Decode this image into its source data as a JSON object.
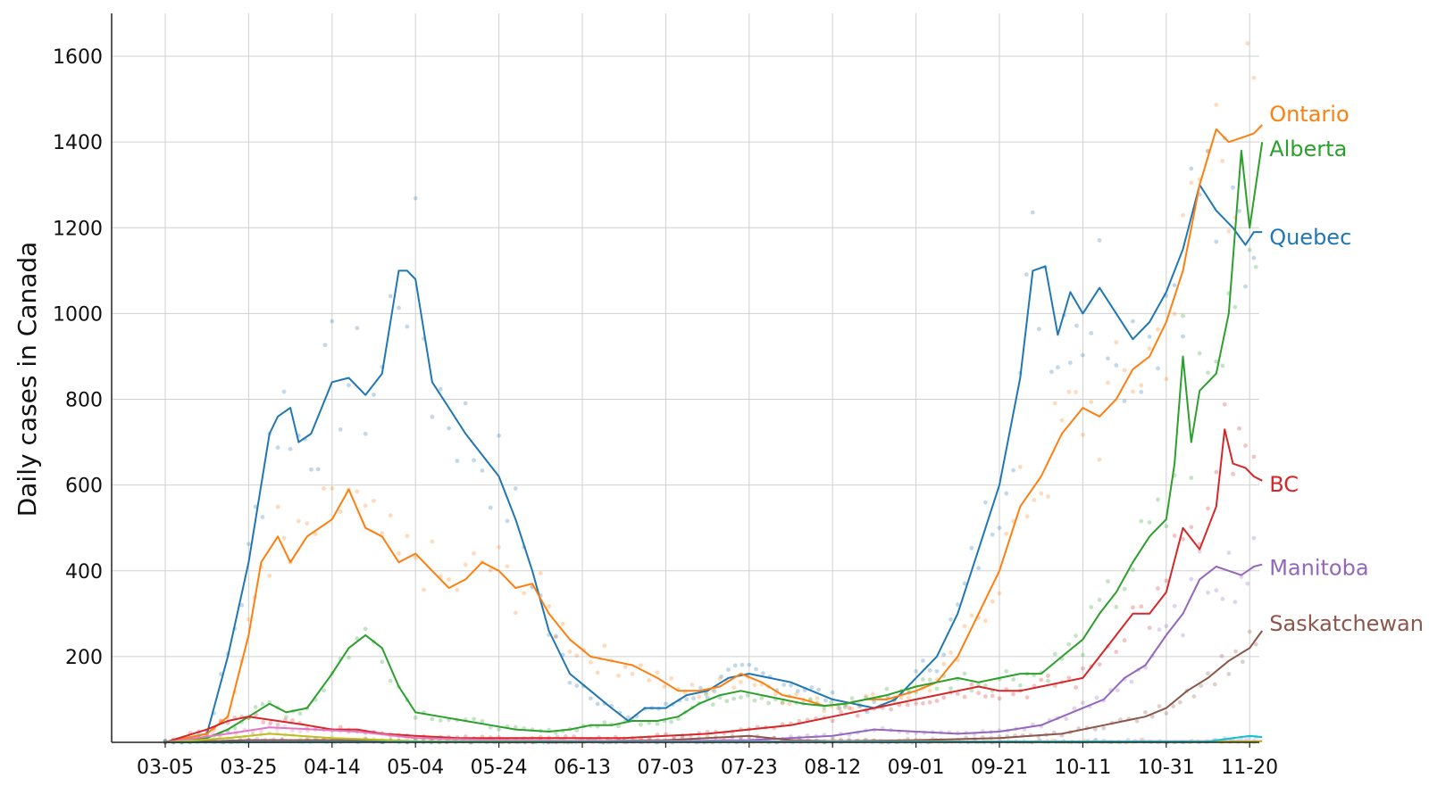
{
  "chart_data": {
    "type": "line",
    "title": "",
    "xlabel": "",
    "ylabel": "Daily cases in Canada",
    "ylim": [
      0,
      1700
    ],
    "yticks": [
      200,
      400,
      600,
      800,
      1000,
      1200,
      1400,
      1600
    ],
    "x_unit": "date (MM-DD, 2020)",
    "xlim": [
      "03-05",
      "11-23"
    ],
    "xticks": [
      "03-05",
      "03-25",
      "04-14",
      "05-04",
      "05-24",
      "06-13",
      "07-03",
      "07-23",
      "08-12",
      "09-01",
      "09-21",
      "10-11",
      "10-31",
      "11-20"
    ],
    "grid": true,
    "legend": "inline labels at right end of lines",
    "notes_visual": "Solid lines are smoothed daily values; faint dots are raw daily counts.",
    "series": [
      {
        "name": "Quebec",
        "color": "#1f77b4",
        "points": [
          [
            "03-05",
            0
          ],
          [
            "03-15",
            20
          ],
          [
            "03-20",
            200
          ],
          [
            "03-25",
            420
          ],
          [
            "03-30",
            720
          ],
          [
            "04-01",
            760
          ],
          [
            "04-04",
            780
          ],
          [
            "04-06",
            700
          ],
          [
            "04-09",
            720
          ],
          [
            "04-14",
            840
          ],
          [
            "04-18",
            850
          ],
          [
            "04-22",
            810
          ],
          [
            "04-26",
            860
          ],
          [
            "04-30",
            1100
          ],
          [
            "05-02",
            1100
          ],
          [
            "05-04",
            1080
          ],
          [
            "05-08",
            840
          ],
          [
            "05-12",
            780
          ],
          [
            "05-16",
            720
          ],
          [
            "05-20",
            670
          ],
          [
            "05-24",
            620
          ],
          [
            "05-28",
            520
          ],
          [
            "06-01",
            400
          ],
          [
            "06-05",
            260
          ],
          [
            "06-10",
            160
          ],
          [
            "06-15",
            120
          ],
          [
            "06-20",
            80
          ],
          [
            "06-24",
            50
          ],
          [
            "06-28",
            80
          ],
          [
            "07-03",
            80
          ],
          [
            "07-08",
            110
          ],
          [
            "07-13",
            120
          ],
          [
            "07-18",
            150
          ],
          [
            "07-23",
            160
          ],
          [
            "07-28",
            150
          ],
          [
            "08-02",
            140
          ],
          [
            "08-07",
            120
          ],
          [
            "08-12",
            100
          ],
          [
            "08-17",
            90
          ],
          [
            "08-22",
            80
          ],
          [
            "08-27",
            100
          ],
          [
            "09-01",
            150
          ],
          [
            "09-06",
            200
          ],
          [
            "09-11",
            300
          ],
          [
            "09-16",
            450
          ],
          [
            "09-21",
            600
          ],
          [
            "09-26",
            850
          ],
          [
            "09-29",
            1100
          ],
          [
            "10-02",
            1110
          ],
          [
            "10-05",
            950
          ],
          [
            "10-08",
            1050
          ],
          [
            "10-11",
            1000
          ],
          [
            "10-15",
            1060
          ],
          [
            "10-19",
            1000
          ],
          [
            "10-23",
            940
          ],
          [
            "10-27",
            980
          ],
          [
            "10-31",
            1050
          ],
          [
            "11-04",
            1150
          ],
          [
            "11-08",
            1300
          ],
          [
            "11-12",
            1240
          ],
          [
            "11-16",
            1200
          ],
          [
            "11-19",
            1160
          ],
          [
            "11-21",
            1190
          ],
          [
            "11-23",
            1190
          ]
        ]
      },
      {
        "name": "Ontario",
        "color": "#ff7f0e",
        "points": [
          [
            "03-05",
            0
          ],
          [
            "03-15",
            20
          ],
          [
            "03-20",
            60
          ],
          [
            "03-25",
            250
          ],
          [
            "03-28",
            420
          ],
          [
            "04-01",
            480
          ],
          [
            "04-04",
            420
          ],
          [
            "04-08",
            480
          ],
          [
            "04-14",
            520
          ],
          [
            "04-18",
            590
          ],
          [
            "04-22",
            500
          ],
          [
            "04-26",
            480
          ],
          [
            "04-30",
            420
          ],
          [
            "05-04",
            440
          ],
          [
            "05-08",
            400
          ],
          [
            "05-12",
            360
          ],
          [
            "05-16",
            380
          ],
          [
            "05-20",
            420
          ],
          [
            "05-24",
            400
          ],
          [
            "05-28",
            360
          ],
          [
            "06-01",
            370
          ],
          [
            "06-05",
            300
          ],
          [
            "06-10",
            240
          ],
          [
            "06-15",
            200
          ],
          [
            "06-20",
            190
          ],
          [
            "06-25",
            180
          ],
          [
            "07-01",
            150
          ],
          [
            "07-06",
            120
          ],
          [
            "07-11",
            120
          ],
          [
            "07-16",
            130
          ],
          [
            "07-21",
            160
          ],
          [
            "07-26",
            140
          ],
          [
            "07-31",
            110
          ],
          [
            "08-05",
            100
          ],
          [
            "08-10",
            85
          ],
          [
            "08-15",
            90
          ],
          [
            "08-20",
            100
          ],
          [
            "08-25",
            100
          ],
          [
            "09-01",
            120
          ],
          [
            "09-06",
            140
          ],
          [
            "09-11",
            200
          ],
          [
            "09-16",
            300
          ],
          [
            "09-21",
            400
          ],
          [
            "09-26",
            550
          ],
          [
            "10-01",
            620
          ],
          [
            "10-06",
            720
          ],
          [
            "10-11",
            780
          ],
          [
            "10-15",
            760
          ],
          [
            "10-19",
            800
          ],
          [
            "10-23",
            870
          ],
          [
            "10-27",
            900
          ],
          [
            "10-31",
            980
          ],
          [
            "11-04",
            1100
          ],
          [
            "11-08",
            1300
          ],
          [
            "11-12",
            1430
          ],
          [
            "11-15",
            1400
          ],
          [
            "11-18",
            1410
          ],
          [
            "11-21",
            1420
          ],
          [
            "11-23",
            1440
          ]
        ]
      },
      {
        "name": "Alberta",
        "color": "#2ca02c",
        "points": [
          [
            "03-05",
            0
          ],
          [
            "03-15",
            10
          ],
          [
            "03-20",
            30
          ],
          [
            "03-25",
            60
          ],
          [
            "03-30",
            90
          ],
          [
            "04-03",
            70
          ],
          [
            "04-08",
            80
          ],
          [
            "04-14",
            160
          ],
          [
            "04-18",
            220
          ],
          [
            "04-22",
            250
          ],
          [
            "04-26",
            220
          ],
          [
            "04-30",
            130
          ],
          [
            "05-04",
            70
          ],
          [
            "05-10",
            60
          ],
          [
            "05-16",
            50
          ],
          [
            "05-22",
            40
          ],
          [
            "05-28",
            30
          ],
          [
            "06-05",
            25
          ],
          [
            "06-10",
            30
          ],
          [
            "06-15",
            40
          ],
          [
            "06-20",
            40
          ],
          [
            "06-25",
            50
          ],
          [
            "07-01",
            50
          ],
          [
            "07-06",
            60
          ],
          [
            "07-11",
            90
          ],
          [
            "07-16",
            110
          ],
          [
            "07-21",
            120
          ],
          [
            "07-26",
            110
          ],
          [
            "07-31",
            100
          ],
          [
            "08-05",
            90
          ],
          [
            "08-10",
            85
          ],
          [
            "08-15",
            90
          ],
          [
            "08-20",
            100
          ],
          [
            "08-25",
            110
          ],
          [
            "09-01",
            130
          ],
          [
            "09-06",
            140
          ],
          [
            "09-11",
            150
          ],
          [
            "09-16",
            140
          ],
          [
            "09-21",
            150
          ],
          [
            "09-26",
            160
          ],
          [
            "10-01",
            160
          ],
          [
            "10-06",
            200
          ],
          [
            "10-11",
            240
          ],
          [
            "10-15",
            300
          ],
          [
            "10-19",
            350
          ],
          [
            "10-23",
            420
          ],
          [
            "10-27",
            480
          ],
          [
            "10-31",
            520
          ],
          [
            "11-02",
            650
          ],
          [
            "11-04",
            900
          ],
          [
            "11-06",
            700
          ],
          [
            "11-08",
            820
          ],
          [
            "11-12",
            860
          ],
          [
            "11-15",
            1000
          ],
          [
            "11-18",
            1380
          ],
          [
            "11-20",
            1200
          ],
          [
            "11-23",
            1400
          ]
        ]
      },
      {
        "name": "BC",
        "color": "#d62728",
        "points": [
          [
            "03-05",
            0
          ],
          [
            "03-15",
            30
          ],
          [
            "03-20",
            50
          ],
          [
            "03-25",
            60
          ],
          [
            "04-01",
            50
          ],
          [
            "04-08",
            40
          ],
          [
            "04-14",
            30
          ],
          [
            "04-20",
            30
          ],
          [
            "04-26",
            20
          ],
          [
            "05-04",
            15
          ],
          [
            "05-14",
            10
          ],
          [
            "05-24",
            10
          ],
          [
            "06-03",
            10
          ],
          [
            "06-13",
            10
          ],
          [
            "06-23",
            10
          ],
          [
            "07-03",
            15
          ],
          [
            "07-13",
            20
          ],
          [
            "07-23",
            30
          ],
          [
            "08-02",
            40
          ],
          [
            "08-12",
            60
          ],
          [
            "08-22",
            80
          ],
          [
            "09-01",
            100
          ],
          [
            "09-06",
            110
          ],
          [
            "09-11",
            120
          ],
          [
            "09-16",
            130
          ],
          [
            "09-21",
            120
          ],
          [
            "09-26",
            120
          ],
          [
            "10-01",
            130
          ],
          [
            "10-06",
            140
          ],
          [
            "10-11",
            150
          ],
          [
            "10-15",
            200
          ],
          [
            "10-19",
            250
          ],
          [
            "10-23",
            300
          ],
          [
            "10-27",
            300
          ],
          [
            "10-31",
            350
          ],
          [
            "11-04",
            500
          ],
          [
            "11-08",
            450
          ],
          [
            "11-12",
            550
          ],
          [
            "11-14",
            730
          ],
          [
            "11-16",
            650
          ],
          [
            "11-19",
            640
          ],
          [
            "11-21",
            620
          ],
          [
            "11-23",
            610
          ]
        ]
      },
      {
        "name": "Manitoba",
        "color": "#9467bd",
        "points": [
          [
            "03-05",
            0
          ],
          [
            "03-25",
            5
          ],
          [
            "04-14",
            5
          ],
          [
            "05-04",
            2
          ],
          [
            "06-03",
            2
          ],
          [
            "07-03",
            3
          ],
          [
            "07-23",
            5
          ],
          [
            "08-12",
            15
          ],
          [
            "08-22",
            30
          ],
          [
            "09-01",
            25
          ],
          [
            "09-11",
            20
          ],
          [
            "09-21",
            25
          ],
          [
            "10-01",
            40
          ],
          [
            "10-11",
            80
          ],
          [
            "10-16",
            100
          ],
          [
            "10-21",
            150
          ],
          [
            "10-26",
            180
          ],
          [
            "10-31",
            250
          ],
          [
            "11-04",
            300
          ],
          [
            "11-08",
            380
          ],
          [
            "11-12",
            410
          ],
          [
            "11-15",
            400
          ],
          [
            "11-18",
            390
          ],
          [
            "11-21",
            410
          ],
          [
            "11-23",
            415
          ]
        ]
      },
      {
        "name": "Saskatchewan",
        "color": "#8c564b",
        "points": [
          [
            "03-05",
            0
          ],
          [
            "03-25",
            5
          ],
          [
            "04-14",
            5
          ],
          [
            "05-04",
            2
          ],
          [
            "06-03",
            2
          ],
          [
            "07-03",
            5
          ],
          [
            "07-13",
            10
          ],
          [
            "07-23",
            15
          ],
          [
            "08-02",
            5
          ],
          [
            "08-12",
            3
          ],
          [
            "09-01",
            5
          ],
          [
            "09-21",
            10
          ],
          [
            "10-06",
            20
          ],
          [
            "10-16",
            40
          ],
          [
            "10-26",
            60
          ],
          [
            "10-31",
            80
          ],
          [
            "11-05",
            120
          ],
          [
            "11-10",
            150
          ],
          [
            "11-15",
            190
          ],
          [
            "11-20",
            220
          ],
          [
            "11-23",
            260
          ]
        ]
      },
      {
        "name": "",
        "color": "#e377c2",
        "points": [
          [
            "03-05",
            0
          ],
          [
            "03-20",
            20
          ],
          [
            "03-30",
            35
          ],
          [
            "04-10",
            30
          ],
          [
            "04-20",
            25
          ],
          [
            "05-04",
            10
          ],
          [
            "05-24",
            5
          ],
          [
            "06-23",
            3
          ],
          [
            "08-12",
            2
          ],
          [
            "09-21",
            2
          ],
          [
            "11-23",
            3
          ]
        ]
      },
      {
        "name": "",
        "color": "#bcbd22",
        "points": [
          [
            "03-05",
            0
          ],
          [
            "03-20",
            10
          ],
          [
            "03-30",
            20
          ],
          [
            "04-14",
            10
          ],
          [
            "05-04",
            3
          ],
          [
            "06-23",
            1
          ],
          [
            "11-23",
            2
          ]
        ]
      },
      {
        "name": "",
        "color": "#17becf",
        "points": [
          [
            "03-05",
            0
          ],
          [
            "05-04",
            1
          ],
          [
            "08-12",
            1
          ],
          [
            "11-10",
            2
          ],
          [
            "11-16",
            10
          ],
          [
            "11-20",
            15
          ],
          [
            "11-23",
            12
          ]
        ]
      }
    ]
  }
}
